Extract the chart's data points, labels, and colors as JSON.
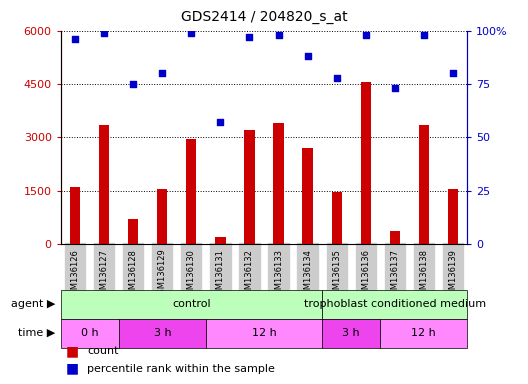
{
  "title": "GDS2414 / 204820_s_at",
  "samples": [
    "GSM136126",
    "GSM136127",
    "GSM136128",
    "GSM136129",
    "GSM136130",
    "GSM136131",
    "GSM136132",
    "GSM136133",
    "GSM136134",
    "GSM136135",
    "GSM136136",
    "GSM136137",
    "GSM136138",
    "GSM136139"
  ],
  "counts": [
    1600,
    3350,
    700,
    1550,
    2950,
    200,
    3200,
    3400,
    2700,
    1450,
    4550,
    350,
    3350,
    1550
  ],
  "percentiles": [
    96,
    99,
    75,
    80,
    99,
    57,
    97,
    98,
    88,
    78,
    98,
    73,
    98,
    80
  ],
  "ylim_left": [
    0,
    6000
  ],
  "ylim_right": [
    0,
    100
  ],
  "yticks_left": [
    0,
    1500,
    3000,
    4500,
    6000
  ],
  "yticks_right": [
    0,
    25,
    50,
    75,
    100
  ],
  "bar_color": "#cc0000",
  "dot_color": "#0000cc",
  "agent_groups": [
    {
      "label": "control",
      "start": 0,
      "end": 9,
      "color": "#bbffbb"
    },
    {
      "label": "trophoblast conditioned medium",
      "start": 9,
      "end": 14,
      "color": "#bbffbb"
    }
  ],
  "time_groups": [
    {
      "label": "0 h",
      "start": 0,
      "end": 2,
      "color": "#ff88ff"
    },
    {
      "label": "3 h",
      "start": 2,
      "end": 5,
      "color": "#ee44ee"
    },
    {
      "label": "12 h",
      "start": 5,
      "end": 9,
      "color": "#ff88ff"
    },
    {
      "label": "3 h",
      "start": 9,
      "end": 11,
      "color": "#ee44ee"
    },
    {
      "label": "12 h",
      "start": 11,
      "end": 14,
      "color": "#ff88ff"
    }
  ],
  "agent_label": "agent",
  "time_label": "time",
  "legend_count": "count",
  "legend_percentile": "percentile rank within the sample",
  "bar_color_legend": "#cc0000",
  "dot_color_legend": "#0000cc",
  "tick_color_left": "#cc0000",
  "tick_color_right": "#0000cc",
  "grid_linestyle": "dotted",
  "title_fontsize": 10,
  "ytick_fontsize": 8,
  "xtick_fontsize": 6,
  "band_fontsize": 8,
  "legend_fontsize": 8
}
